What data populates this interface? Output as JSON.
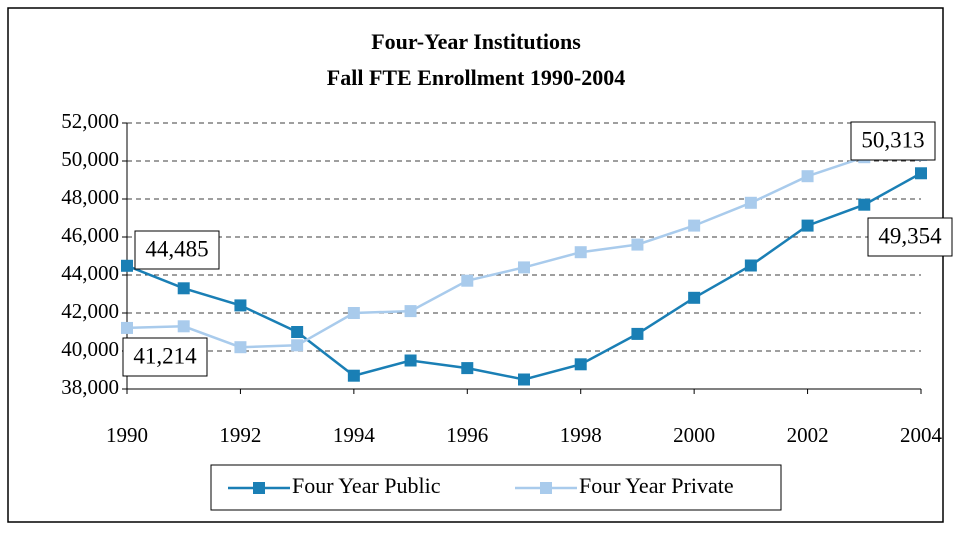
{
  "chart_data": {
    "type": "line",
    "title": "Four-Year Institutions",
    "subtitle": "Fall FTE Enrollment 1990-2004",
    "x": [
      1990,
      1991,
      1992,
      1993,
      1994,
      1995,
      1996,
      1997,
      1998,
      1999,
      2000,
      2001,
      2002,
      2003,
      2004
    ],
    "series": [
      {
        "name": "Four Year Public",
        "color": "#1a7fb5",
        "values": [
          44485,
          43300,
          42400,
          41000,
          38700,
          39500,
          39100,
          38500,
          39300,
          40900,
          42800,
          44500,
          46600,
          47700,
          49354
        ],
        "value_labels": [
          "44,485",
          null,
          null,
          null,
          null,
          null,
          null,
          null,
          null,
          null,
          null,
          null,
          null,
          null,
          "49,354"
        ]
      },
      {
        "name": "Four Year Private",
        "color": "#a9cbec",
        "values": [
          41214,
          41300,
          40200,
          40300,
          42000,
          42100,
          43700,
          44400,
          45200,
          45600,
          46600,
          47800,
          49200,
          50200,
          50313
        ],
        "value_labels": [
          "41,214",
          null,
          null,
          null,
          null,
          null,
          null,
          null,
          null,
          null,
          null,
          null,
          null,
          null,
          "50,313"
        ]
      }
    ],
    "xlim": [
      1990,
      2004
    ],
    "xticks": [
      1990,
      1992,
      1994,
      1996,
      1998,
      2000,
      2002,
      2004
    ],
    "ylim": [
      38000,
      52000
    ],
    "yticks": [
      {
        "value": 38000,
        "label": "38,000"
      },
      {
        "value": 40000,
        "label": "40,000"
      },
      {
        "value": 42000,
        "label": "42,000"
      },
      {
        "value": 44000,
        "label": "44,000"
      },
      {
        "value": 46000,
        "label": "46,000"
      },
      {
        "value": 48000,
        "label": "48,000"
      },
      {
        "value": 50000,
        "label": "50,000"
      },
      {
        "value": 52000,
        "label": "52,000"
      }
    ],
    "grid": true,
    "legend": "bottom"
  }
}
